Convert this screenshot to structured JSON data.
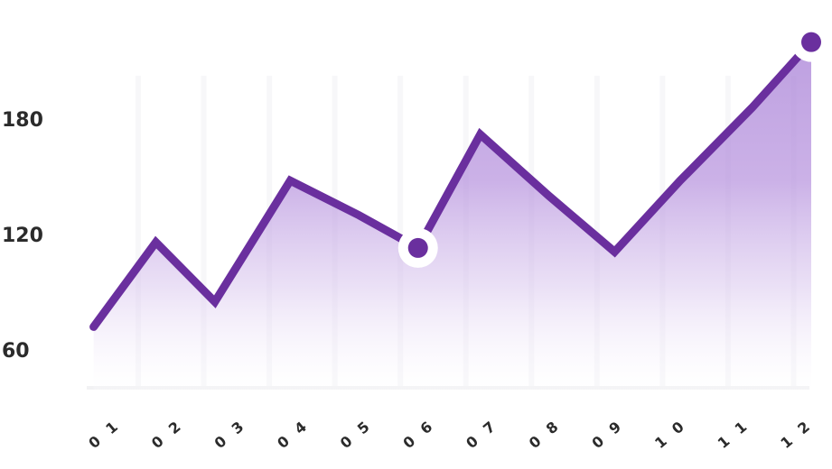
{
  "chart_data": {
    "type": "area",
    "title": "",
    "xlabel": "",
    "ylabel": "",
    "categories": [
      "01",
      "02",
      "03",
      "04",
      "05",
      "06",
      "07",
      "08",
      "09",
      "10",
      "11",
      "12"
    ],
    "series": [
      {
        "values": [
          72,
          116,
          85,
          148,
          130,
          113,
          172,
          140,
          111,
          148,
          186,
          220
        ],
        "x": [
          1.05,
          2.0,
          2.9,
          4.05,
          5.1,
          6.0,
          6.95,
          8.0,
          9.0,
          10.0,
          11.1,
          12.0
        ]
      }
    ],
    "highlighted_points": [
      {
        "x": 6.0,
        "y": 113
      },
      {
        "x": 12.0,
        "y": 220
      }
    ],
    "yticks": [
      60,
      120,
      180
    ],
    "ylim": [
      30,
      230
    ],
    "xlim": [
      0.75,
      12.3
    ],
    "grid": true,
    "line_color": "#6a2f9e",
    "fill_color": "#b58ad9"
  }
}
